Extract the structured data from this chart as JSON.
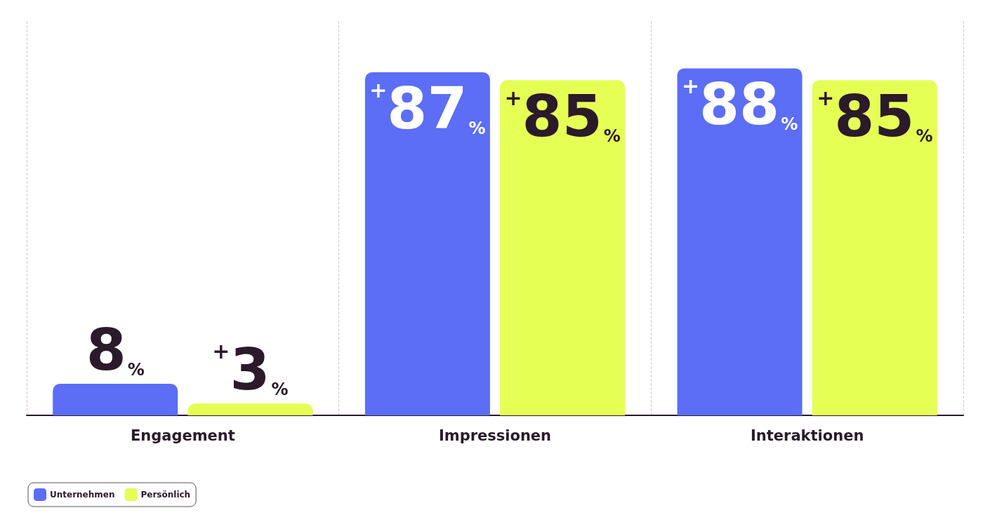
{
  "chart_data": {
    "type": "bar",
    "categories": [
      "Engagement",
      "Impressionen",
      "Interaktionen"
    ],
    "series": [
      {
        "name": "Unternehmen",
        "color": "#5b6ef5",
        "values": [
          8,
          87,
          88
        ],
        "value_labels": [
          "8%",
          "+87%",
          "+88%"
        ]
      },
      {
        "name": "Persönlich",
        "color": "#e6ff55",
        "values": [
          3,
          85,
          85
        ],
        "value_labels": [
          "+3%",
          "+85%",
          "+85%"
        ]
      }
    ],
    "legend": "bottom left",
    "grid": "x",
    "tick_labels": "x"
  }
}
